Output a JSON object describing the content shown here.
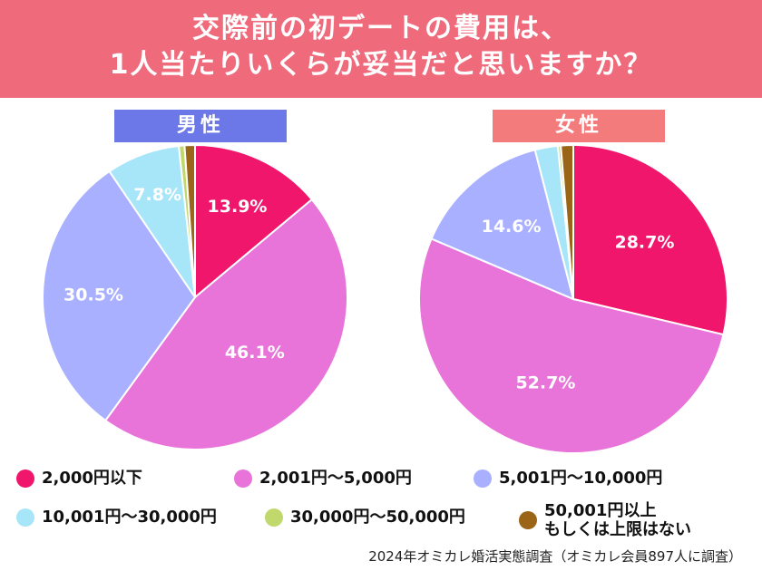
{
  "header": {
    "title_line1": "交際前の初デートの費用は、",
    "title_line2": "1人当たりいくらが妥当だと思いますか？"
  },
  "colors": {
    "banner": "#ef6b7c",
    "male_title": "#6c78e8",
    "female_title": "#f37b7b",
    "slices": [
      "#f0166c",
      "#e873d9",
      "#a9b0ff",
      "#a7e6f8",
      "#c0d86c",
      "#9a6516"
    ]
  },
  "chart_data": [
    {
      "type": "pie",
      "title": "男性",
      "categories": [
        "2,000円以下",
        "2,001円〜5,000円",
        "5,001円〜10,000円",
        "10,001円〜30,000円",
        "30,000円〜50,000円",
        "50,001円以上もしくは上限はない"
      ],
      "values": [
        13.9,
        46.1,
        30.5,
        7.8,
        0.6,
        1.1
      ],
      "labels": [
        "13.9%",
        "46.1%",
        "30.5%",
        "7.8%",
        "",
        ""
      ]
    },
    {
      "type": "pie",
      "title": "女性",
      "categories": [
        "2,000円以下",
        "2,001円〜5,000円",
        "5,001円〜10,000円",
        "10,001円〜30,000円",
        "30,000円〜50,000円",
        "50,001円以上もしくは上限はない"
      ],
      "values": [
        28.7,
        52.7,
        14.6,
        2.4,
        0.3,
        1.3
      ],
      "labels": [
        "28.7%",
        "52.7%",
        "14.6%",
        "",
        "",
        ""
      ]
    }
  ],
  "legend": [
    {
      "label": "2,000円以下"
    },
    {
      "label": "2,001円〜5,000円"
    },
    {
      "label": "5,001円〜10,000円"
    },
    {
      "label": "10,001円〜30,000円"
    },
    {
      "label": "30,000円〜50,000円"
    },
    {
      "label_line1": "50,001円以上",
      "label_line2": "もしくは上限はない"
    }
  ],
  "source": "2024年オミカレ婚活実態調査（オミカレ会員897人に調査）"
}
